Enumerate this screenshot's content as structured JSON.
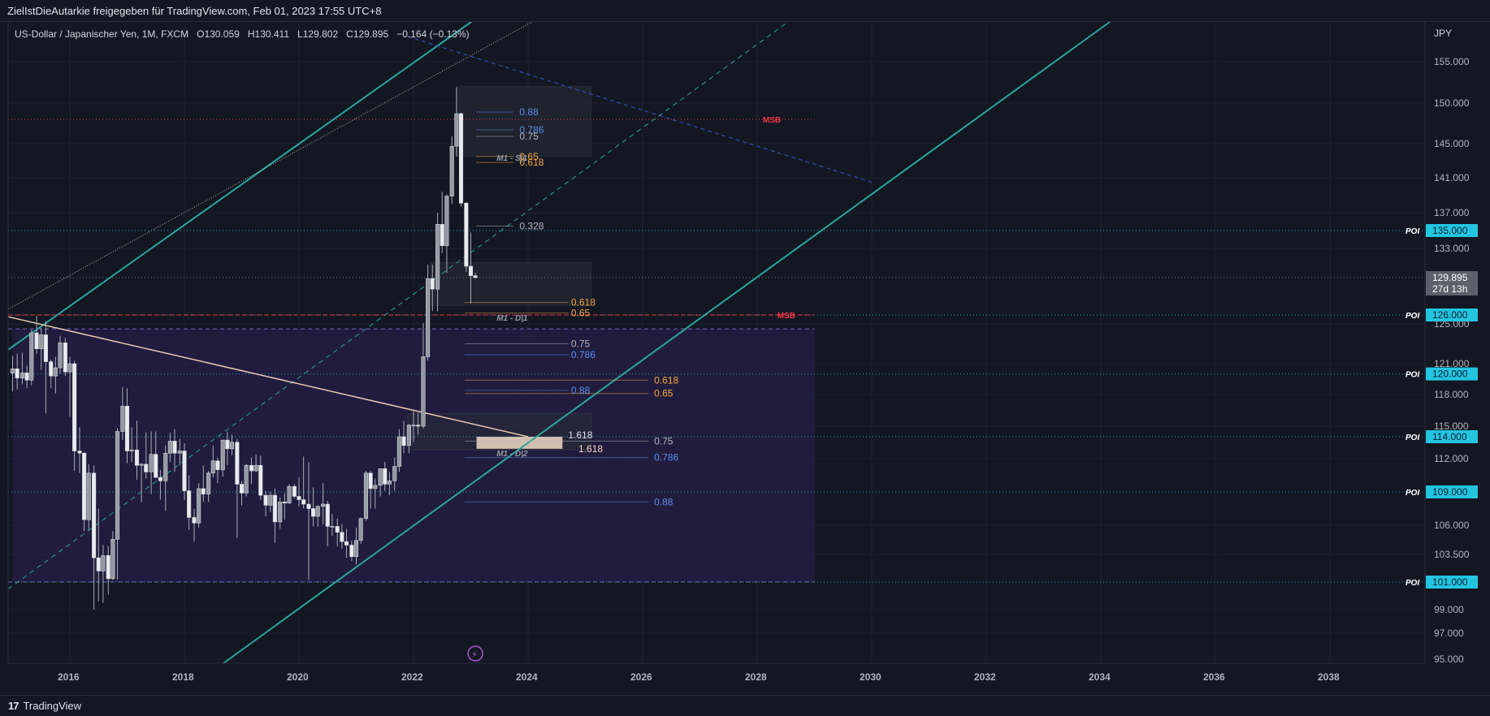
{
  "header": {
    "attribution": "ZielIstDieAutarkie freigegeben für TradingView.com, Feb 01, 2023 17:55 UTC+8"
  },
  "legend": {
    "symbol": "US-Dollar / Japanischer Yen, 1M, FXCM",
    "open_label": "O",
    "open": "130.059",
    "high_label": "H",
    "high": "130.411",
    "low_label": "L",
    "low": "129.802",
    "close_label": "C",
    "close": "129.895",
    "change": "−0.164 (−0.13%)"
  },
  "footer": {
    "brand": "TradingView",
    "logo": "17"
  },
  "colors": {
    "background": "#131722",
    "up": "#d1d4dc",
    "down": "#f0f0f0",
    "channel": "#26a69a",
    "poi_badge": "#22c5e0",
    "msb": "#f23645",
    "fib_blue": "#5b8def",
    "fib_orange": "#f5a742",
    "zone": "#2a1f4d"
  },
  "chart_data": {
    "type": "candlestick",
    "currency_label": "JPY",
    "x_ticks": [
      "2016",
      "2018",
      "2020",
      "2022",
      "2024",
      "2026",
      "2028",
      "2030",
      "2032",
      "2034",
      "2036",
      "2038"
    ],
    "y_ticks": [
      "155.000",
      "150.000",
      "145.000",
      "141.000",
      "137.000",
      "133.000",
      "125.000",
      "121.000",
      "118.000",
      "115.000",
      "112.000",
      "106.000",
      "103.500",
      "99.000",
      "97.000",
      "95.000"
    ],
    "y_tick_values": [
      155,
      150,
      145,
      141,
      137,
      133,
      125,
      121,
      118,
      115,
      112,
      106,
      103.5,
      99,
      97,
      95
    ],
    "current_price": "129.895",
    "countdown": "27d 13h",
    "poi_levels": [
      {
        "label": "POI",
        "value": "135.000",
        "price": 135
      },
      {
        "label": "POI",
        "value": "126.000",
        "price": 126
      },
      {
        "label": "POI",
        "value": "120.000",
        "price": 120
      },
      {
        "label": "POI",
        "value": "114.000",
        "price": 114
      },
      {
        "label": "POI",
        "value": "109.000",
        "price": 109
      },
      {
        "label": "POI",
        "value": "101.000",
        "price": 101
      }
    ],
    "msb_labels": [
      {
        "text": "MSB",
        "price": 148.0
      },
      {
        "text": "MSB",
        "price": 126.0
      }
    ],
    "zone_labels": [
      {
        "text": "M1 - S|1"
      },
      {
        "text": "M1 - D|1"
      },
      {
        "text": "M1 - D|2"
      }
    ],
    "fib_labels_upper": [
      {
        "text": "0.88",
        "price": 148.9,
        "color": "blue"
      },
      {
        "text": "0.786",
        "price": 146.7,
        "color": "blue"
      },
      {
        "text": "0.75",
        "price": 145.9,
        "color": "gray"
      },
      {
        "text": "0.65",
        "price": 143.5,
        "color": "orange"
      },
      {
        "text": "0.618",
        "price": 142.8,
        "color": "orange"
      },
      {
        "text": "0.328",
        "price": 135.5,
        "color": "gray"
      }
    ],
    "fib_labels_middle": [
      {
        "text": "0.618",
        "price": 127.3,
        "color": "orange"
      },
      {
        "text": "0.65",
        "price": 126.2,
        "color": "orange"
      },
      {
        "text": "0.75",
        "price": 123.0,
        "color": "gray"
      },
      {
        "text": "0.786",
        "price": 121.9,
        "color": "blue"
      },
      {
        "text": "0.88",
        "price": 118.4,
        "color": "blue"
      }
    ],
    "fib_labels_right": [
      {
        "text": "0.618",
        "price": 119.4,
        "color": "orange"
      },
      {
        "text": "0.65",
        "price": 118.1,
        "color": "orange"
      },
      {
        "text": "0.75",
        "price": 113.6,
        "color": "gray"
      },
      {
        "text": "0.786",
        "price": 112.1,
        "color": "blue"
      },
      {
        "text": "0.88",
        "price": 108.1,
        "color": "blue"
      }
    ],
    "extension_labels": [
      {
        "text": "1.618",
        "price": 114.0
      },
      {
        "text": "1.618",
        "price": 112.9
      }
    ],
    "candles": [
      [
        2015.0,
        120.1,
        121.8,
        118.3,
        120.5
      ],
      [
        2015.08,
        120.5,
        122.0,
        118.5,
        119.6
      ],
      [
        2015.17,
        119.6,
        122.1,
        119.0,
        120.1
      ],
      [
        2015.25,
        120.1,
        120.8,
        118.6,
        119.4
      ],
      [
        2015.33,
        119.4,
        124.4,
        118.9,
        124.1
      ],
      [
        2015.42,
        124.1,
        125.9,
        122.0,
        122.5
      ],
      [
        2015.5,
        122.5,
        124.6,
        120.4,
        123.9
      ],
      [
        2015.58,
        123.9,
        125.3,
        116.2,
        121.2
      ],
      [
        2015.67,
        121.2,
        121.4,
        118.6,
        119.8
      ],
      [
        2015.75,
        119.8,
        121.7,
        118.1,
        120.6
      ],
      [
        2015.83,
        120.6,
        123.8,
        120.0,
        123.1
      ],
      [
        2015.92,
        123.1,
        123.6,
        119.8,
        120.2
      ],
      [
        2016.0,
        120.2,
        121.7,
        115.9,
        121.0
      ],
      [
        2016.08,
        121.0,
        121.3,
        110.9,
        112.7
      ],
      [
        2016.17,
        112.7,
        114.9,
        110.7,
        112.5
      ],
      [
        2016.25,
        112.5,
        112.6,
        105.5,
        106.5
      ],
      [
        2016.33,
        106.5,
        111.5,
        105.6,
        110.7
      ],
      [
        2016.42,
        110.7,
        111.4,
        99.0,
        103.2
      ],
      [
        2016.5,
        103.2,
        107.5,
        99.6,
        102.0
      ],
      [
        2016.58,
        102.0,
        104.3,
        99.5,
        103.4
      ],
      [
        2016.67,
        103.4,
        104.2,
        100.1,
        101.3
      ],
      [
        2016.75,
        101.3,
        105.5,
        101.2,
        104.8
      ],
      [
        2016.83,
        104.8,
        114.8,
        101.2,
        114.5
      ],
      [
        2016.92,
        114.5,
        118.7,
        113.7,
        116.9
      ],
      [
        2017.0,
        116.9,
        118.6,
        111.6,
        112.7
      ],
      [
        2017.08,
        112.7,
        114.9,
        111.7,
        112.8
      ],
      [
        2017.17,
        112.8,
        115.5,
        110.1,
        111.4
      ],
      [
        2017.25,
        111.4,
        111.6,
        108.1,
        111.5
      ],
      [
        2017.33,
        111.5,
        114.4,
        110.2,
        110.8
      ],
      [
        2017.42,
        110.8,
        114.5,
        108.8,
        112.4
      ],
      [
        2017.5,
        112.4,
        114.5,
        110.6,
        110.3
      ],
      [
        2017.58,
        110.3,
        111.0,
        108.3,
        110.0
      ],
      [
        2017.67,
        110.0,
        113.2,
        107.3,
        112.5
      ],
      [
        2017.75,
        112.5,
        114.4,
        111.7,
        113.6
      ],
      [
        2017.83,
        113.6,
        114.7,
        110.8,
        112.5
      ],
      [
        2017.92,
        112.5,
        113.8,
        111.4,
        112.7
      ],
      [
        2018.0,
        112.7,
        113.4,
        108.3,
        109.1
      ],
      [
        2018.08,
        109.1,
        110.5,
        105.6,
        106.7
      ],
      [
        2018.17,
        106.7,
        107.5,
        104.6,
        106.2
      ],
      [
        2018.25,
        106.2,
        109.8,
        105.8,
        109.3
      ],
      [
        2018.33,
        109.3,
        111.4,
        108.1,
        108.8
      ],
      [
        2018.42,
        108.8,
        110.9,
        108.1,
        110.7
      ],
      [
        2018.5,
        110.7,
        113.2,
        110.3,
        111.8
      ],
      [
        2018.58,
        111.8,
        112.1,
        109.8,
        111.0
      ],
      [
        2018.67,
        111.0,
        113.7,
        110.4,
        113.7
      ],
      [
        2018.75,
        113.7,
        114.5,
        111.4,
        112.9
      ],
      [
        2018.83,
        112.9,
        114.2,
        112.3,
        113.5
      ],
      [
        2018.92,
        113.5,
        113.8,
        104.9,
        109.7
      ],
      [
        2019.0,
        109.7,
        110.0,
        107.8,
        108.9
      ],
      [
        2019.08,
        108.9,
        111.5,
        108.6,
        111.4
      ],
      [
        2019.17,
        111.4,
        112.1,
        109.7,
        110.9
      ],
      [
        2019.25,
        110.9,
        112.4,
        110.8,
        111.4
      ],
      [
        2019.33,
        111.4,
        112.3,
        108.3,
        108.7
      ],
      [
        2019.42,
        108.7,
        109.1,
        106.8,
        107.8
      ],
      [
        2019.5,
        107.8,
        109.0,
        107.2,
        108.7
      ],
      [
        2019.58,
        108.7,
        109.3,
        104.5,
        106.3
      ],
      [
        2019.67,
        106.3,
        108.5,
        105.7,
        108.1
      ],
      [
        2019.75,
        108.1,
        108.9,
        106.5,
        108.0
      ],
      [
        2019.83,
        108.0,
        109.7,
        107.9,
        109.5
      ],
      [
        2019.92,
        109.5,
        109.7,
        108.4,
        108.6
      ],
      [
        2020.0,
        108.6,
        110.3,
        107.7,
        108.3
      ],
      [
        2020.08,
        108.3,
        112.2,
        107.5,
        107.9
      ],
      [
        2020.17,
        107.9,
        111.7,
        101.2,
        107.5
      ],
      [
        2020.25,
        107.5,
        109.4,
        105.9,
        106.8
      ],
      [
        2020.33,
        106.8,
        107.8,
        105.9,
        107.7
      ],
      [
        2020.42,
        107.7,
        109.8,
        106.1,
        107.9
      ],
      [
        2020.5,
        107.9,
        108.2,
        104.2,
        105.9
      ],
      [
        2020.58,
        105.9,
        107.0,
        105.1,
        105.9
      ],
      [
        2020.67,
        105.9,
        106.6,
        104.2,
        105.4
      ],
      [
        2020.75,
        105.4,
        106.1,
        104.0,
        104.6
      ],
      [
        2020.83,
        104.6,
        105.7,
        103.2,
        104.3
      ],
      [
        2020.92,
        104.3,
        104.7,
        102.9,
        103.3
      ],
      [
        2021.0,
        103.3,
        105.8,
        102.6,
        104.7
      ],
      [
        2021.08,
        104.7,
        106.7,
        104.4,
        106.6
      ],
      [
        2021.17,
        106.6,
        110.9,
        106.4,
        110.7
      ],
      [
        2021.25,
        110.7,
        110.9,
        107.5,
        109.3
      ],
      [
        2021.33,
        109.3,
        110.2,
        107.5,
        109.6
      ],
      [
        2021.42,
        109.6,
        111.1,
        108.6,
        111.1
      ],
      [
        2021.5,
        111.1,
        111.7,
        109.1,
        109.7
      ],
      [
        2021.58,
        109.7,
        110.8,
        108.7,
        110.0
      ],
      [
        2021.67,
        110.0,
        112.1,
        109.1,
        111.3
      ],
      [
        2021.75,
        111.3,
        114.7,
        110.8,
        114.0
      ],
      [
        2021.83,
        114.0,
        115.5,
        112.5,
        113.2
      ],
      [
        2021.92,
        113.2,
        115.2,
        112.5,
        115.1
      ],
      [
        2022.0,
        115.1,
        116.4,
        113.5,
        115.1
      ],
      [
        2022.08,
        115.1,
        116.3,
        114.2,
        115.0
      ],
      [
        2022.17,
        115.0,
        125.1,
        114.8,
        121.7
      ],
      [
        2022.25,
        121.7,
        131.3,
        121.3,
        129.8
      ],
      [
        2022.33,
        129.8,
        131.3,
        126.4,
        128.7
      ],
      [
        2022.42,
        128.7,
        137.0,
        126.4,
        135.7
      ],
      [
        2022.5,
        135.7,
        139.4,
        132.5,
        133.3
      ],
      [
        2022.58,
        133.3,
        139.1,
        130.4,
        138.9
      ],
      [
        2022.67,
        138.9,
        145.9,
        138.0,
        144.7
      ],
      [
        2022.75,
        144.7,
        151.9,
        143.5,
        148.7
      ],
      [
        2022.83,
        148.7,
        148.8,
        137.7,
        138.1
      ],
      [
        2022.92,
        138.1,
        138.2,
        130.5,
        131.1
      ],
      [
        2023.0,
        131.1,
        134.8,
        127.2,
        130.1
      ],
      [
        2023.08,
        130.1,
        130.4,
        129.8,
        129.9
      ]
    ]
  }
}
